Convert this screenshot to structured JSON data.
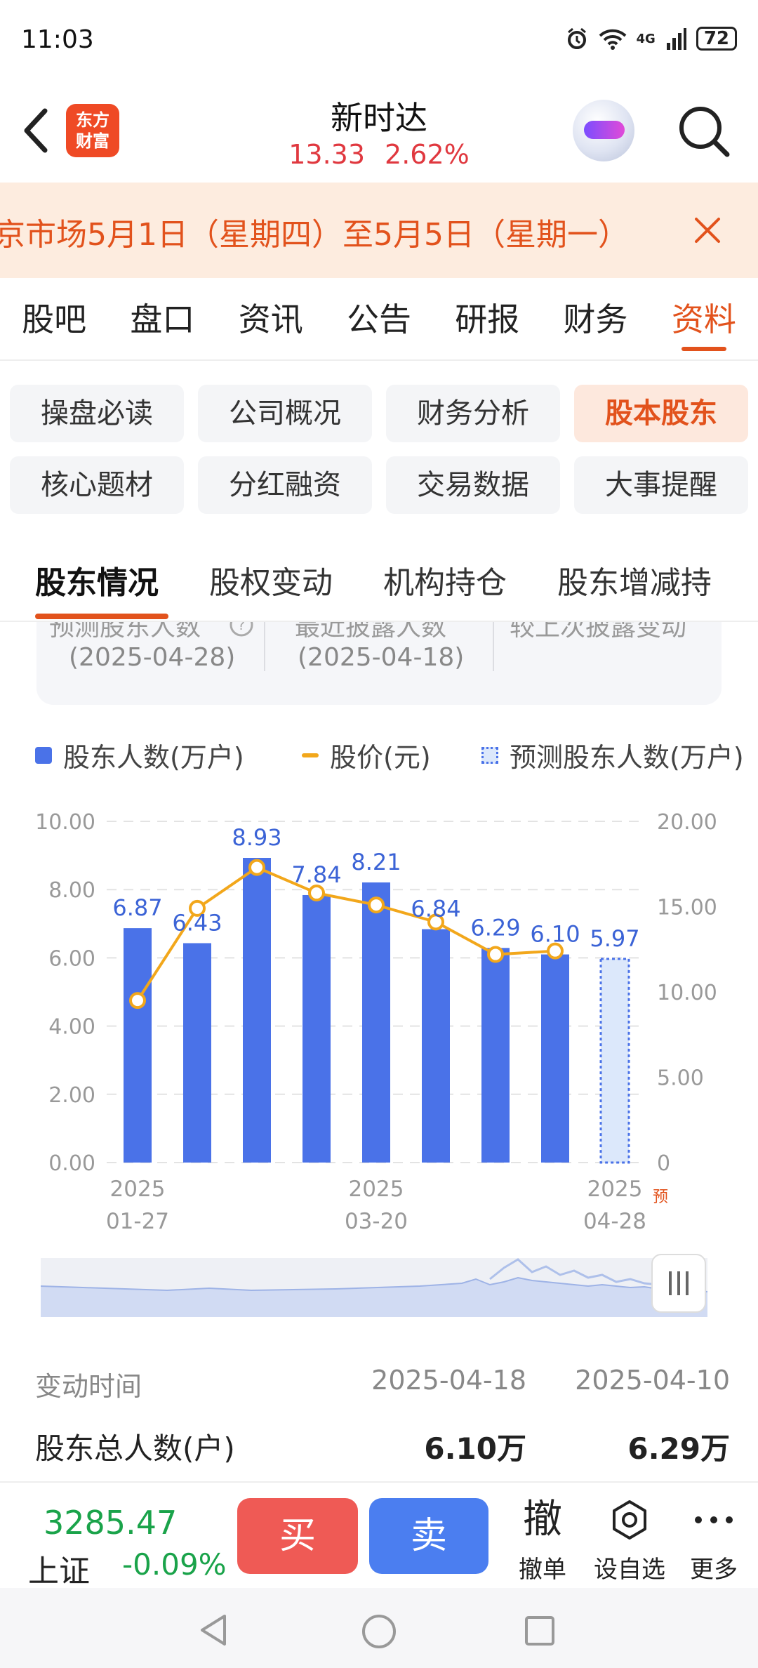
{
  "status_bar": {
    "time": "11:03",
    "network": "4G",
    "battery": "72"
  },
  "header": {
    "app_logo_text": "东方\n财富",
    "stock_name": "新时达",
    "price": "13.33",
    "change_pct": "2.62%"
  },
  "notice": {
    "text": "京市场5月1日（星期四）至5月5日（星期一）"
  },
  "main_tabs": [
    "股吧",
    "盘口",
    "资讯",
    "公告",
    "研报",
    "财务",
    "资料"
  ],
  "main_tab_active": "资料",
  "sub_menu": [
    "操盘必读",
    "公司概况",
    "财务分析",
    "股本股东",
    "核心题材",
    "分红融资",
    "交易数据",
    "大事提醒"
  ],
  "sub_menu_active": "股本股东",
  "section_tabs": [
    "股东情况",
    "股权变动",
    "机构持仓",
    "股东增减持"
  ],
  "summary": {
    "items": [
      {
        "label": "预测股东人数",
        "date": "(2025-04-28)"
      },
      {
        "label": "最近披露人数",
        "date": "(2025-04-18)"
      },
      {
        "label": "较上次披露变动",
        "date": ""
      }
    ]
  },
  "legend": {
    "bars": "股东人数(万户)",
    "line": "股价(元)",
    "predicted": "预测股东人数(万户)"
  },
  "chart_data": {
    "type": "bar",
    "title": "",
    "categories": [
      "2025-01-27",
      "",
      "",
      "",
      "2025-03-20",
      "",
      "",
      "",
      "2025-04-28"
    ],
    "x_tick_labels": [
      {
        "year": "2025",
        "date": "01-27"
      },
      {
        "year": "2025",
        "date": "03-20"
      },
      {
        "year": "2025",
        "date": "04-28"
      }
    ],
    "predicted_marker": "预",
    "series": [
      {
        "name": "股东人数(万户)",
        "axis": "left",
        "values": [
          6.87,
          6.43,
          8.93,
          7.84,
          8.21,
          6.84,
          6.29,
          6.1,
          null
        ]
      },
      {
        "name": "预测股东人数(万户)",
        "axis": "left",
        "values": [
          null,
          null,
          null,
          null,
          null,
          null,
          null,
          null,
          5.97
        ]
      },
      {
        "name": "股价(元)",
        "axis": "right",
        "type": "line",
        "values": [
          9.5,
          14.9,
          17.3,
          15.8,
          15.1,
          14.1,
          12.2,
          12.4,
          null
        ]
      }
    ],
    "data_labels": [
      "6.87",
      "6.43",
      "8.93",
      "7.84",
      "8.21",
      "6.84",
      "6.29",
      "6.10",
      "5.97"
    ],
    "y_left": {
      "ticks": [
        "10.00",
        "8.00",
        "6.00",
        "4.00",
        "2.00",
        "0.00"
      ],
      "ylim": [
        0,
        10
      ]
    },
    "y_right": {
      "ticks": [
        "20.00",
        "15.00",
        "10.00",
        "5.00",
        "0"
      ],
      "ylim": [
        0,
        20
      ]
    },
    "grid": true,
    "colors": {
      "bar": "#4a72e8",
      "line": "#f2a71b",
      "predicted_fill": "#dce8fb",
      "label": "#3b63d6"
    }
  },
  "table": {
    "header": {
      "label": "变动时间",
      "col1": "2025-04-18",
      "col2": "2025-04-10"
    },
    "rows": [
      {
        "label": "股东总人数(户)",
        "col1": "6.10万",
        "col2": "6.29万"
      }
    ]
  },
  "trade_bar": {
    "index_value": "3285.47",
    "index_name": "上证",
    "index_change": "-0.09%",
    "buy": "买",
    "sell": "卖",
    "tools": [
      {
        "icon": "撤",
        "label": "撤单"
      },
      {
        "icon": "gear",
        "label": "设自选"
      },
      {
        "icon": "more",
        "label": "更多"
      }
    ]
  },
  "colors": {
    "accent": "#e2521c",
    "up": "#e0383f",
    "down": "#1aa34a"
  }
}
